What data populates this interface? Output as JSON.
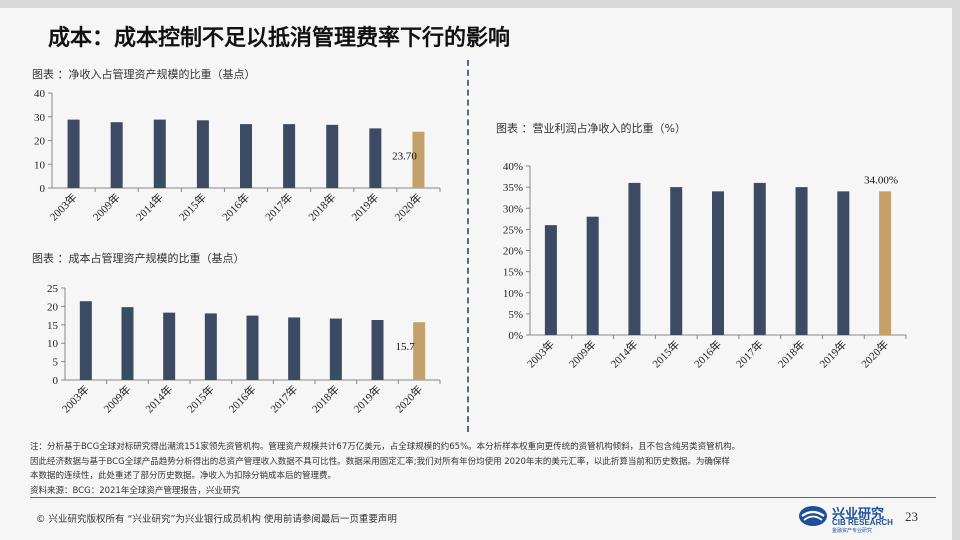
{
  "slide_title": "成本：成本控制不足以抵消管理费率下行的影响",
  "colors": {
    "bar": "#3d4a63",
    "highlight": "#c4a06a",
    "accent": "#1e4f99"
  },
  "chart_data": [
    {
      "type": "bar",
      "title": "图表 ：净收入占管理资产规模的比重（基点）",
      "categories": [
        "2003年",
        "2009年",
        "2014年",
        "2015年",
        "2016年",
        "2017年",
        "2018年",
        "2019年",
        "2020年"
      ],
      "values": [
        28.8,
        27.7,
        28.8,
        28.5,
        26.9,
        26.9,
        26.6,
        25.1,
        23.7
      ],
      "data_labels": [
        "",
        "",
        "",
        "",
        "",
        "",
        "",
        "",
        "23.70"
      ],
      "ylim": [
        0,
        40
      ],
      "yticks": [
        "0",
        "10",
        "20",
        "30",
        "40"
      ],
      "grid": false
    },
    {
      "type": "bar",
      "title": "图表 ：成本占管理资产规模的比重（基点）",
      "categories": [
        "2003年",
        "2009年",
        "2014年",
        "2015年",
        "2016年",
        "2017年",
        "2018年",
        "2019年",
        "2020年"
      ],
      "values": [
        21.4,
        19.8,
        18.3,
        18.1,
        17.5,
        17.0,
        16.7,
        16.3,
        15.7
      ],
      "data_labels": [
        "",
        "",
        "",
        "",
        "",
        "",
        "",
        "",
        "15.7"
      ],
      "ylim": [
        0,
        25
      ],
      "yticks": [
        "0",
        "5",
        "10",
        "15",
        "20",
        "25"
      ],
      "grid": false
    },
    {
      "type": "bar",
      "title": "图表 ：营业利润占净收入的比重（%）",
      "categories": [
        "2003年",
        "2009年",
        "2014年",
        "2015年",
        "2016年",
        "2017年",
        "2018年",
        "2019年",
        "2020年"
      ],
      "values": [
        26,
        28,
        36,
        35,
        34,
        36,
        35,
        34,
        34
      ],
      "data_labels": [
        "",
        "",
        "",
        "",
        "",
        "",
        "",
        "",
        "34.00%"
      ],
      "ylim": [
        0,
        40
      ],
      "yticks": [
        "0%",
        "5%",
        "10%",
        "15%",
        "20%",
        "25%",
        "30%",
        "35%",
        "40%"
      ],
      "grid": false
    }
  ],
  "notes": {
    "line1": "注：分析基于BCG全球对标研究得出潮流151家领先资管机构。管理资产规模共计67万亿美元，占全球规模的约65%。本分析样本权重向更传统的资管机构倾斜，且不包含纯另类资管机构。",
    "line2": "因此经济数据与基于BCG全球产品趋势分析得出的总资产管理收入数据不具可比性。数据采用固定汇率;我们对所有年份均使用 2020年末的美元汇率，以此折算当前和历史数据。为确保样",
    "line3": "本数据的连续性，此处重述了部分历史数据。净收入为扣除分销成本后的管理费。",
    "source": "资料来源：BCG：2021年全球资产管理报告，兴业研究"
  },
  "footer": {
    "text": "©  兴业研究版权所有    “兴业研究”为兴业银行成员机构    使用前请参阅最后一页重要声明",
    "logo_cn": "兴业研究",
    "logo_en": "CIB RESEARCH",
    "logo_sub": "金融资产专业研究",
    "page": "23"
  }
}
